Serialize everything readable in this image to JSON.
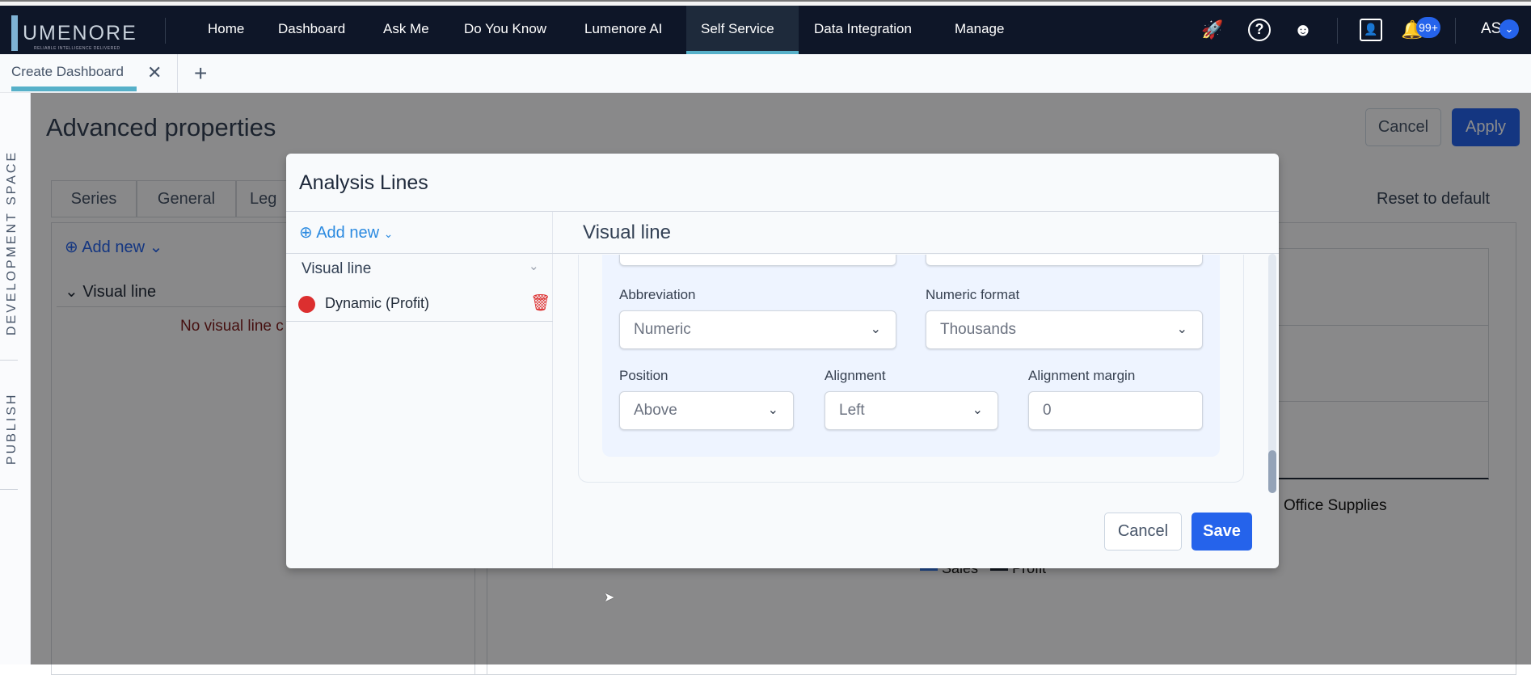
{
  "nav": {
    "logo_text": "UMENORE",
    "logo_tagline": "RELIABLE INTELLIGENCE DELIVERED",
    "items": [
      "Home",
      "Dashboard",
      "Ask Me",
      "Do You Know",
      "Lumenore AI",
      "Self Service",
      "Data Integration",
      "Manage"
    ],
    "active": "Self Service",
    "notification_badge": "99+",
    "user_initials": "AS",
    "icons": [
      "rocket-icon",
      "help-icon",
      "bot-icon",
      "feedback-icon",
      "bell-icon"
    ]
  },
  "tabs": {
    "open_tab": "Create Dashboard",
    "add_tab": "+"
  },
  "side_strip": {
    "development": "DEVELOPMENT SPACE",
    "publish": "PUBLISH"
  },
  "background": {
    "title": "Advanced properties",
    "cancel": "Cancel",
    "apply": "Apply",
    "reset": "Reset to default",
    "prop_tabs": [
      "Series",
      "General",
      "Leg"
    ],
    "add_new": "Add new",
    "section": "Visual line",
    "empty": "No visual line c",
    "chart_category": "Office Supplies",
    "legend": [
      "Sales",
      "Profit"
    ]
  },
  "modal": {
    "title": "Analysis Lines",
    "add_new": "Add new",
    "group": "Visual line",
    "items": [
      {
        "label": "Dynamic (Profit)",
        "color": "#dc2f2f"
      }
    ],
    "panel_title": "Visual line",
    "fields": {
      "abbreviation": {
        "label": "Abbreviation",
        "value": "Numeric"
      },
      "numeric_format": {
        "label": "Numeric format",
        "value": "Thousands"
      },
      "position": {
        "label": "Position",
        "value": "Above"
      },
      "alignment": {
        "label": "Alignment",
        "value": "Left"
      },
      "alignment_margin": {
        "label": "Alignment margin",
        "value": "0"
      }
    },
    "cancel": "Cancel",
    "save": "Save"
  },
  "colors": {
    "nav_bg": "#0e1628",
    "accent": "#56b0c9",
    "primary": "#2563eb",
    "danger": "#dc2f2f"
  }
}
